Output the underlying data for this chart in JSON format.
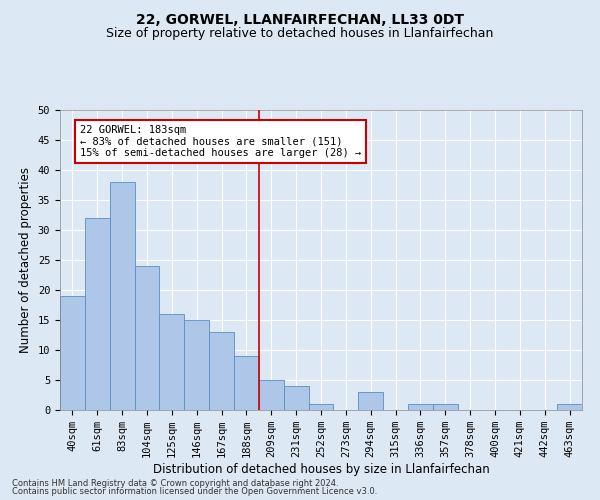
{
  "title": "22, GORWEL, LLANFAIRFECHAN, LL33 0DT",
  "subtitle": "Size of property relative to detached houses in Llanfairfechan",
  "xlabel": "Distribution of detached houses by size in Llanfairfechan",
  "ylabel": "Number of detached properties",
  "categories": [
    "40sqm",
    "61sqm",
    "83sqm",
    "104sqm",
    "125sqm",
    "146sqm",
    "167sqm",
    "188sqm",
    "209sqm",
    "231sqm",
    "252sqm",
    "273sqm",
    "294sqm",
    "315sqm",
    "336sqm",
    "357sqm",
    "378sqm",
    "400sqm",
    "421sqm",
    "442sqm",
    "463sqm"
  ],
  "values": [
    19,
    32,
    38,
    24,
    16,
    15,
    13,
    9,
    5,
    4,
    1,
    0,
    3,
    0,
    1,
    1,
    0,
    0,
    0,
    0,
    1
  ],
  "bar_color": "#aec6e8",
  "bar_edge_color": "#5a8fc0",
  "vline_x": 7.5,
  "vline_color": "#cc0000",
  "annotation_line1": "22 GORWEL: 183sqm",
  "annotation_line2": "← 83% of detached houses are smaller (151)",
  "annotation_line3": "15% of semi-detached houses are larger (28) →",
  "annotation_box_color": "#ffffff",
  "annotation_box_edge": "#cc0000",
  "ylim": [
    0,
    50
  ],
  "yticks": [
    0,
    5,
    10,
    15,
    20,
    25,
    30,
    35,
    40,
    45,
    50
  ],
  "footer1": "Contains HM Land Registry data © Crown copyright and database right 2024.",
  "footer2": "Contains public sector information licensed under the Open Government Licence v3.0.",
  "background_color": "#dde8f5",
  "plot_background": "#dde8f5",
  "grid_color": "#ffffff",
  "title_fontsize": 10,
  "subtitle_fontsize": 9,
  "xlabel_fontsize": 8.5,
  "ylabel_fontsize": 8.5,
  "tick_fontsize": 7.5,
  "footer_fontsize": 6
}
